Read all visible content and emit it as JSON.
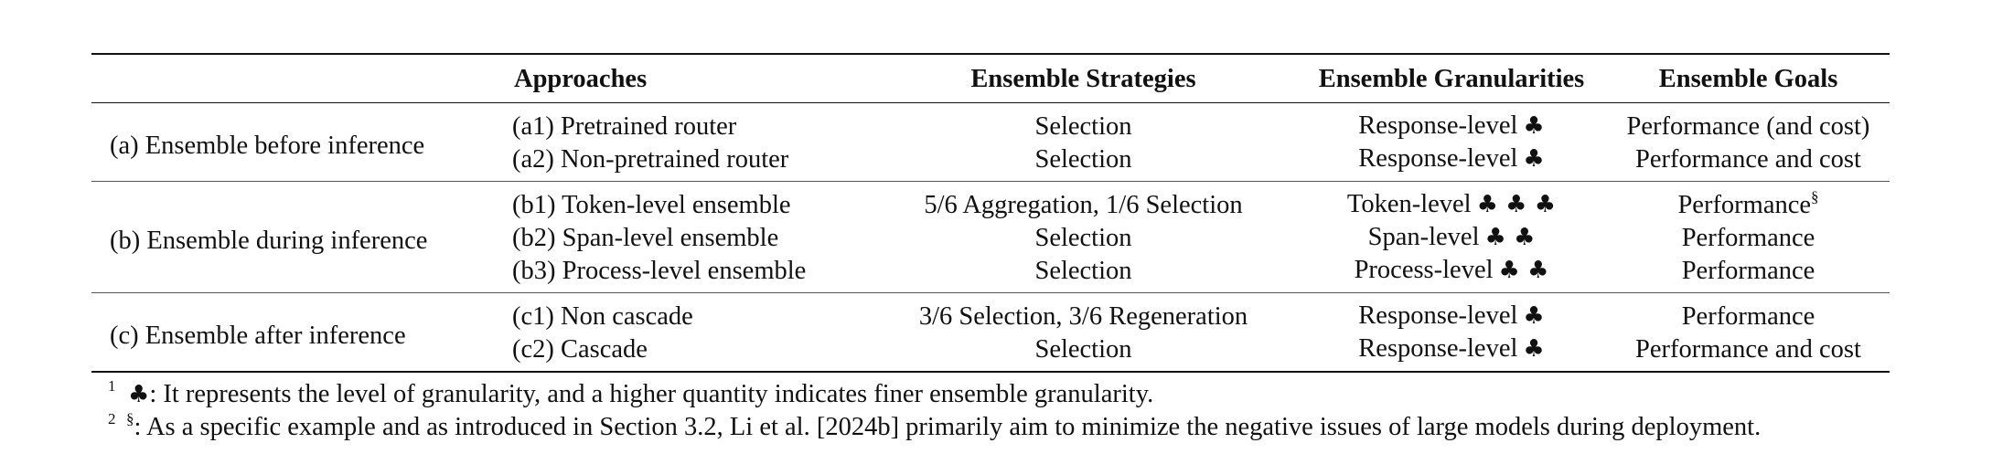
{
  "table": {
    "headers": [
      "",
      "Approaches",
      "Ensemble Strategies",
      "Ensemble Granularities",
      "Ensemble Goals"
    ],
    "groups": [
      {
        "label": "(a) Ensemble before inference",
        "rows": [
          {
            "approach": "(a1) Pretrained router",
            "strategy": "Selection",
            "granularity": "Response-level",
            "clubs": "♣",
            "goal": "Performance (and cost)",
            "goal_sup": ""
          },
          {
            "approach": "(a2) Non-pretrained router",
            "strategy": "Selection",
            "granularity": "Response-level",
            "clubs": "♣",
            "goal": "Performance and cost",
            "goal_sup": ""
          }
        ]
      },
      {
        "label": "(b) Ensemble during inference",
        "rows": [
          {
            "approach": "(b1) Token-level ensemble",
            "strategy": "5/6 Aggregation, 1/6 Selection",
            "granularity": "Token-level",
            "clubs": "♣ ♣ ♣",
            "goal": "Performance",
            "goal_sup": "§"
          },
          {
            "approach": "(b2) Span-level ensemble",
            "strategy": "Selection",
            "granularity": "Span-level",
            "clubs": "♣ ♣",
            "goal": "Performance",
            "goal_sup": ""
          },
          {
            "approach": "(b3) Process-level ensemble",
            "strategy": "Selection",
            "granularity": "Process-level",
            "clubs": "♣ ♣",
            "goal": "Performance",
            "goal_sup": ""
          }
        ]
      },
      {
        "label": "(c) Ensemble after inference",
        "rows": [
          {
            "approach": "(c1) Non cascade",
            "strategy": "3/6 Selection, 3/6 Regeneration",
            "granularity": "Response-level",
            "clubs": "♣",
            "goal": "Performance",
            "goal_sup": ""
          },
          {
            "approach": "(c2) Cascade",
            "strategy": "Selection",
            "granularity": "Response-level",
            "clubs": "♣",
            "goal": "Performance and cost",
            "goal_sup": ""
          }
        ]
      }
    ]
  },
  "footnotes": [
    {
      "num": "1",
      "symbol": "♣",
      "text": ": It represents the level of granularity, and a higher quantity indicates finer ensemble granularity."
    },
    {
      "num": "2",
      "symbol": "§",
      "text": ": As a specific example and as introduced in Section 3.2, Li et al.  [2024b] primarily aim to minimize the negative issues of large models during deployment."
    }
  ]
}
